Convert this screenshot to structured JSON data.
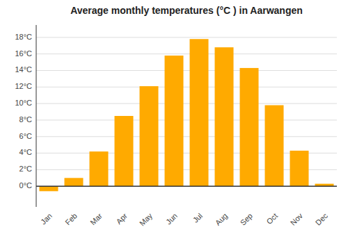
{
  "chart_data": {
    "type": "bar",
    "title": "Average monthly temperatures (°C ) in Aarwangen",
    "categories": [
      "Jan",
      "Feb",
      "Mar",
      "Apr",
      "May",
      "Jun",
      "Jul",
      "Aug",
      "Sep",
      "Oct",
      "Nov",
      "Dec"
    ],
    "values": [
      -0.6,
      1.0,
      4.2,
      8.5,
      12.1,
      15.8,
      17.8,
      16.8,
      14.3,
      9.8,
      4.3,
      0.3
    ],
    "color": "#FFAA00",
    "ylim": [
      -2.5,
      19.5
    ],
    "yticks": [
      {
        "value": 0,
        "label": "0°C"
      },
      {
        "value": 2,
        "label": "2°C"
      },
      {
        "value": 4,
        "label": "4°C"
      },
      {
        "value": 6,
        "label": "6°C"
      },
      {
        "value": 8,
        "label": "8°C"
      },
      {
        "value": 10,
        "label": "10°C"
      },
      {
        "value": 12,
        "label": "12°C"
      },
      {
        "value": 14,
        "label": "14°C"
      },
      {
        "value": 16,
        "label": "16°C"
      },
      {
        "value": 18,
        "label": "18°C"
      }
    ],
    "grid": true
  }
}
